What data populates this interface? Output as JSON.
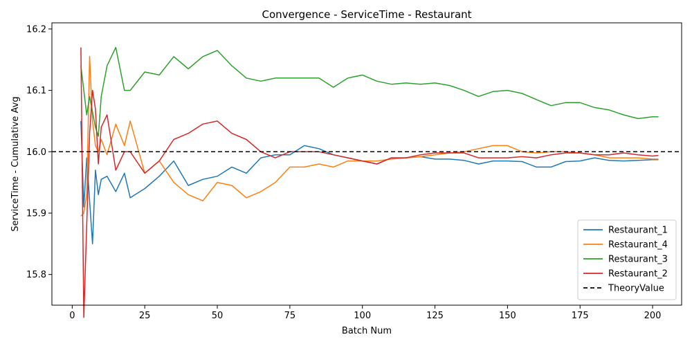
{
  "chart_data": {
    "type": "line",
    "title": "Convergence - ServiceTime - Restaurant",
    "xlabel": "Batch Num",
    "ylabel": "ServiceTime - Cumulative Avg",
    "xlim": [
      -7,
      210
    ],
    "ylim": [
      15.75,
      16.21
    ],
    "xticks": [
      0,
      25,
      50,
      75,
      100,
      125,
      150,
      175,
      200
    ],
    "yticks": [
      15.8,
      15.9,
      16.0,
      16.1,
      16.2
    ],
    "ytick_labels": [
      "15.8",
      "15.9",
      "16.0",
      "16.1",
      "16.2"
    ],
    "grid": false,
    "legend_position": "bottom-right",
    "x_series": [
      3,
      4,
      5,
      6,
      7,
      8,
      9,
      10,
      12,
      15,
      18,
      20,
      25,
      30,
      35,
      40,
      45,
      50,
      55,
      60,
      65,
      70,
      75,
      80,
      85,
      90,
      95,
      100,
      105,
      110,
      115,
      120,
      125,
      130,
      135,
      140,
      145,
      150,
      155,
      160,
      165,
      170,
      175,
      180,
      185,
      190,
      195,
      200,
      202
    ],
    "series": [
      {
        "name": "Restaurant_1",
        "color": "#1f77b4",
        "values": [
          16.05,
          15.91,
          15.99,
          15.92,
          15.85,
          15.97,
          15.93,
          15.955,
          15.96,
          15.935,
          15.965,
          15.925,
          15.94,
          15.96,
          15.985,
          15.945,
          15.955,
          15.96,
          15.975,
          15.965,
          15.99,
          15.995,
          15.995,
          16.01,
          16.005,
          15.995,
          15.99,
          15.985,
          15.98,
          15.99,
          15.99,
          15.992,
          15.988,
          15.988,
          15.986,
          15.98,
          15.985,
          15.985,
          15.984,
          15.975,
          15.975,
          15.984,
          15.985,
          15.99,
          15.986,
          15.985,
          15.986,
          15.987,
          15.987
        ]
      },
      {
        "name": "Restaurant_4",
        "color": "#ff7f0e",
        "values": [
          15.895,
          15.9,
          15.93,
          16.155,
          16.05,
          16.01,
          16.0,
          16.02,
          15.995,
          16.045,
          16.01,
          16.05,
          15.965,
          15.985,
          15.95,
          15.93,
          15.92,
          15.95,
          15.945,
          15.925,
          15.935,
          15.95,
          15.975,
          15.975,
          15.98,
          15.975,
          15.985,
          15.985,
          15.985,
          15.988,
          15.99,
          15.992,
          15.995,
          15.998,
          16.0,
          16.005,
          16.01,
          16.01,
          16.0,
          15.998,
          16.0,
          16.0,
          15.998,
          15.995,
          15.99,
          15.99,
          15.99,
          15.988,
          15.988
        ]
      },
      {
        "name": "Restaurant_3",
        "color": "#2ca02c",
        "values": [
          16.14,
          16.1,
          16.06,
          16.09,
          16.065,
          16.04,
          16.025,
          16.09,
          16.14,
          16.17,
          16.1,
          16.1,
          16.13,
          16.125,
          16.155,
          16.135,
          16.155,
          16.165,
          16.14,
          16.12,
          16.115,
          16.12,
          16.12,
          16.12,
          16.12,
          16.105,
          16.12,
          16.125,
          16.115,
          16.11,
          16.112,
          16.11,
          16.112,
          16.108,
          16.1,
          16.09,
          16.098,
          16.1,
          16.095,
          16.085,
          16.075,
          16.08,
          16.08,
          16.072,
          16.068,
          16.06,
          16.054,
          16.057,
          16.057
        ]
      },
      {
        "name": "Restaurant_2",
        "color": "#d62728",
        "values": [
          16.17,
          15.73,
          15.88,
          16.03,
          16.1,
          16.07,
          15.98,
          16.04,
          16.06,
          15.97,
          16.0,
          16.0,
          15.965,
          15.985,
          16.02,
          16.03,
          16.045,
          16.05,
          16.03,
          16.02,
          16.0,
          15.99,
          16.0,
          16.0,
          16.0,
          15.995,
          15.99,
          15.985,
          15.98,
          15.99,
          15.99,
          15.995,
          15.998,
          15.998,
          15.998,
          15.99,
          15.99,
          15.99,
          15.992,
          15.99,
          15.995,
          15.998,
          15.998,
          15.995,
          15.995,
          15.998,
          15.995,
          15.993,
          15.994
        ]
      }
    ],
    "reference_lines": [
      {
        "name": "TheoryValue",
        "y": 16.0,
        "color": "#000000",
        "style": "dashed"
      }
    ]
  }
}
